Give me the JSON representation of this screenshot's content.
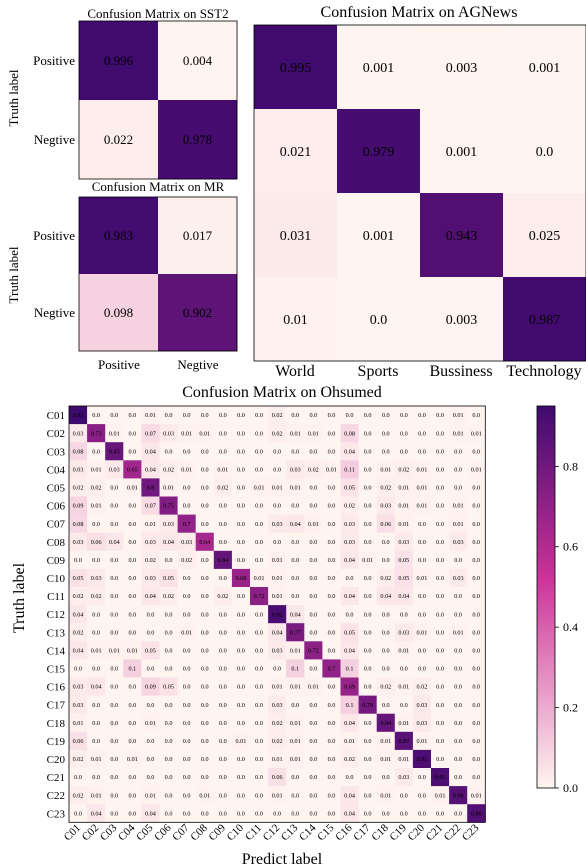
{
  "chart_data": [
    {
      "type": "heatmap",
      "title": "Confusion Matrix on SST2",
      "ylabel": "Truth label",
      "rows": [
        "Positive",
        "Negtive"
      ],
      "columns": [
        "Positive",
        "Negtive"
      ],
      "values": [
        [
          0.996,
          0.004
        ],
        [
          0.022,
          0.978
        ]
      ],
      "value_labels": [
        [
          "0.996",
          "0.004"
        ],
        [
          "0.022",
          "0.978"
        ]
      ]
    },
    {
      "type": "heatmap",
      "title": "Confusion Matrix on MR",
      "ylabel": "Truth label",
      "rows": [
        "Positive",
        "Negtive"
      ],
      "columns": [
        "Positive",
        "Negtive"
      ],
      "values": [
        [
          0.983,
          0.017
        ],
        [
          0.098,
          0.902
        ]
      ],
      "value_labels": [
        [
          "0.983",
          "0.017"
        ],
        [
          "0.098",
          "0.902"
        ]
      ]
    },
    {
      "type": "heatmap",
      "title": "Confusion Matrix on AGNews",
      "columns": [
        "World",
        "Sports",
        "Bussiness",
        "Technology"
      ],
      "values": [
        [
          0.995,
          0.001,
          0.003,
          0.001
        ],
        [
          0.021,
          0.979,
          0.001,
          0.0
        ],
        [
          0.031,
          0.001,
          0.943,
          0.025
        ],
        [
          0.01,
          0.0,
          0.003,
          0.987
        ]
      ],
      "value_labels": [
        [
          "0.995",
          "0.001",
          "0.003",
          "0.001"
        ],
        [
          "0.021",
          "0.979",
          "0.001",
          "0.0"
        ],
        [
          "0.031",
          "0.001",
          "0.943",
          "0.025"
        ],
        [
          "0.01",
          "0.0",
          "0.003",
          "0.987"
        ]
      ]
    },
    {
      "type": "heatmap",
      "title": "Confusion Matrix on Ohsumed",
      "xlabel": "Predict label",
      "ylabel": "Truth label",
      "categories": [
        "C01",
        "C02",
        "C03",
        "C04",
        "C05",
        "C06",
        "C07",
        "C08",
        "C09",
        "C10",
        "C11",
        "C12",
        "C13",
        "C14",
        "C15",
        "C16",
        "C17",
        "C18",
        "C19",
        "C20",
        "C21",
        "C22",
        "C23"
      ],
      "colorbar": {
        "range": [
          0.0,
          0.95
        ],
        "ticks": [
          "0.0",
          "0.2",
          "0.4",
          "0.6",
          "0.8"
        ]
      },
      "values": [
        [
          "0.95",
          "0.0",
          "0.0",
          "0.0",
          "0.01",
          "0.0",
          "0.0",
          "0.0",
          "0.0",
          "0.0",
          "0.0",
          "0.02",
          "0.0",
          "0.0",
          "0.0",
          "0.0",
          "0.0",
          "0.0",
          "0.0",
          "0.0",
          "0.0",
          "0.01",
          "0.0"
        ],
        [
          "0.03",
          "0.73",
          "0.01",
          "0.0",
          "0.07",
          "0.03",
          "0.01",
          "0.01",
          "0.0",
          "0.0",
          "0.0",
          "0.02",
          "0.01",
          "0.01",
          "0.0",
          "0.08",
          "0.0",
          "0.0",
          "0.0",
          "0.0",
          "0.0",
          "0.01",
          "0.01"
        ],
        [
          "0.08",
          "0.0",
          "0.83",
          "0.0",
          "0.04",
          "0.0",
          "0.0",
          "0.0",
          "0.0",
          "0.0",
          "0.0",
          "0.0",
          "0.0",
          "0.0",
          "0.0",
          "0.04",
          "0.0",
          "0.0",
          "0.0",
          "0.0",
          "0.0",
          "0.0",
          "0.0"
        ],
        [
          "0.03",
          "0.01",
          "0.03",
          "0.65",
          "0.04",
          "0.02",
          "0.01",
          "0.0",
          "0.01",
          "0.0",
          "0.0",
          "0.0",
          "0.03",
          "0.02",
          "0.01",
          "0.11",
          "0.0",
          "0.01",
          "0.02",
          "0.01",
          "0.0",
          "0.0",
          "0.01"
        ],
        [
          "0.02",
          "0.02",
          "0.0",
          "0.01",
          "0.8",
          "0.01",
          "0.0",
          "0.0",
          "0.02",
          "0.0",
          "0.01",
          "0.01",
          "0.01",
          "0.0",
          "0.0",
          "0.05",
          "0.0",
          "0.02",
          "0.01",
          "0.01",
          "0.0",
          "0.0",
          "0.0"
        ],
        [
          "0.09",
          "0.01",
          "0.0",
          "0.0",
          "0.07",
          "0.75",
          "0.0",
          "0.0",
          "0.0",
          "0.0",
          "0.0",
          "0.0",
          "0.0",
          "0.0",
          "0.0",
          "0.02",
          "0.0",
          "0.03",
          "0.01",
          "0.01",
          "0.0",
          "0.01",
          "0.0"
        ],
        [
          "0.08",
          "0.0",
          "0.0",
          "0.0",
          "0.01",
          "0.03",
          "0.7",
          "0.0",
          "0.0",
          "0.0",
          "0.0",
          "0.03",
          "0.04",
          "0.01",
          "0.0",
          "0.03",
          "0.0",
          "0.06",
          "0.01",
          "0.0",
          "0.0",
          "0.01",
          "0.0"
        ],
        [
          "0.03",
          "0.06",
          "0.04",
          "0.0",
          "0.03",
          "0.04",
          "0.03",
          "0.64",
          "0.0",
          "0.0",
          "0.0",
          "0.0",
          "0.0",
          "0.0",
          "0.0",
          "0.03",
          "0.0",
          "0.0",
          "0.03",
          "0.0",
          "0.0",
          "0.03",
          "0.0"
        ],
        [
          "0.0",
          "0.0",
          "0.0",
          "0.0",
          "0.02",
          "0.0",
          "0.02",
          "0.0",
          "0.84",
          "0.0",
          "0.0",
          "0.01",
          "0.0",
          "0.0",
          "0.0",
          "0.04",
          "0.01",
          "0.0",
          "0.05",
          "0.0",
          "0.0",
          "0.0",
          "0.0"
        ],
        [
          "0.05",
          "0.03",
          "0.0",
          "0.0",
          "0.03",
          "0.05",
          "0.0",
          "0.0",
          "0.0",
          "0.68",
          "0.01",
          "0.01",
          "0.0",
          "0.0",
          "0.0",
          "0.0",
          "0.0",
          "0.02",
          "0.05",
          "0.01",
          "0.0",
          "0.03",
          "0.0"
        ],
        [
          "0.02",
          "0.02",
          "0.0",
          "0.0",
          "0.04",
          "0.02",
          "0.0",
          "0.0",
          "0.02",
          "0.0",
          "0.72",
          "0.01",
          "0.0",
          "0.0",
          "0.0",
          "0.04",
          "0.0",
          "0.04",
          "0.04",
          "0.0",
          "0.0",
          "0.0",
          "0.0"
        ],
        [
          "0.04",
          "0.0",
          "0.0",
          "0.0",
          "0.0",
          "0.0",
          "0.0",
          "0.0",
          "0.0",
          "0.0",
          "0.0",
          "0.92",
          "0.04",
          "0.0",
          "0.0",
          "0.0",
          "0.0",
          "0.0",
          "0.0",
          "0.0",
          "0.0",
          "0.0",
          "0.0"
        ],
        [
          "0.02",
          "0.0",
          "0.0",
          "0.0",
          "0.0",
          "0.0",
          "0.01",
          "0.0",
          "0.0",
          "0.0",
          "0.0",
          "0.04",
          "0.77",
          "0.0",
          "0.0",
          "0.05",
          "0.0",
          "0.0",
          "0.03",
          "0.01",
          "0.0",
          "0.01",
          "0.0"
        ],
        [
          "0.04",
          "0.01",
          "0.01",
          "0.01",
          "0.05",
          "0.0",
          "0.0",
          "0.0",
          "0.0",
          "0.0",
          "0.0",
          "0.03",
          "0.01",
          "0.72",
          "0.0",
          "0.04",
          "0.0",
          "0.0",
          "0.01",
          "0.0",
          "0.0",
          "0.0",
          "0.0"
        ],
        [
          "0.0",
          "0.0",
          "0.0",
          "0.1",
          "0.0",
          "0.0",
          "0.0",
          "0.0",
          "0.0",
          "0.0",
          "0.0",
          "0.0",
          "0.1",
          "0.0",
          "0.7",
          "0.1",
          "0.0",
          "0.0",
          "0.0",
          "0.0",
          "0.0",
          "0.0",
          "0.0"
        ],
        [
          "0.03",
          "0.04",
          "0.0",
          "0.0",
          "0.09",
          "0.05",
          "0.0",
          "0.0",
          "0.0",
          "0.0",
          "0.0",
          "0.01",
          "0.01",
          "0.01",
          "0.0",
          "0.69",
          "0.0",
          "0.02",
          "0.01",
          "0.02",
          "0.0",
          "0.0",
          "0.0"
        ],
        [
          "0.03",
          "0.0",
          "0.0",
          "0.0",
          "0.0",
          "0.0",
          "0.0",
          "0.0",
          "0.0",
          "0.0",
          "0.0",
          "0.03",
          "0.0",
          "0.0",
          "0.0",
          "0.1",
          "0.79",
          "0.0",
          "0.0",
          "0.03",
          "0.0",
          "0.0",
          "0.0"
        ],
        [
          "0.01",
          "0.0",
          "0.0",
          "0.0",
          "0.01",
          "0.0",
          "0.0",
          "0.0",
          "0.0",
          "0.0",
          "0.0",
          "0.02",
          "0.01",
          "0.0",
          "0.0",
          "0.04",
          "0.0",
          "0.84",
          "0.01",
          "0.03",
          "0.0",
          "0.0",
          "0.0"
        ],
        [
          "0.06",
          "0.0",
          "0.0",
          "0.0",
          "0.0",
          "0.0",
          "0.0",
          "0.0",
          "0.0",
          "0.01",
          "0.0",
          "0.02",
          "0.01",
          "0.0",
          "0.0",
          "0.01",
          "0.0",
          "0.01",
          "0.87",
          "0.01",
          "0.0",
          "0.0",
          "0.0"
        ],
        [
          "0.02",
          "0.01",
          "0.0",
          "0.01",
          "0.0",
          "0.0",
          "0.0",
          "0.0",
          "0.0",
          "0.0",
          "0.0",
          "0.01",
          "0.01",
          "0.0",
          "0.0",
          "0.02",
          "0.0",
          "0.01",
          "0.01",
          "0.91",
          "0.0",
          "0.0",
          "0.0"
        ],
        [
          "0.0",
          "0.0",
          "0.0",
          "0.0",
          "0.0",
          "0.0",
          "0.0",
          "0.0",
          "0.0",
          "0.0",
          "0.0",
          "0.06",
          "0.0",
          "0.0",
          "0.0",
          "0.0",
          "0.0",
          "0.0",
          "0.03",
          "0.0",
          "0.91",
          "0.0",
          "0.0"
        ],
        [
          "0.02",
          "0.01",
          "0.0",
          "0.0",
          "0.01",
          "0.0",
          "0.0",
          "0.01",
          "0.0",
          "0.0",
          "0.0",
          "0.01",
          "0.0",
          "0.0",
          "0.0",
          "0.04",
          "0.0",
          "0.01",
          "0.0",
          "0.0",
          "0.01",
          "0.88",
          "0.01"
        ],
        [
          "0.0",
          "0.04",
          "0.0",
          "0.0",
          "0.04",
          "0.0",
          "0.0",
          "0.0",
          "0.0",
          "0.0",
          "0.0",
          "0.0",
          "0.0",
          "0.0",
          "0.0",
          "0.04",
          "0.0",
          "0.0",
          "0.0",
          "0.0",
          "0.0",
          "0.0",
          "0.89"
        ]
      ]
    }
  ],
  "colors": {
    "low": "#fff5f0",
    "mid": "#cc3399",
    "high": "#3f0a6e"
  }
}
